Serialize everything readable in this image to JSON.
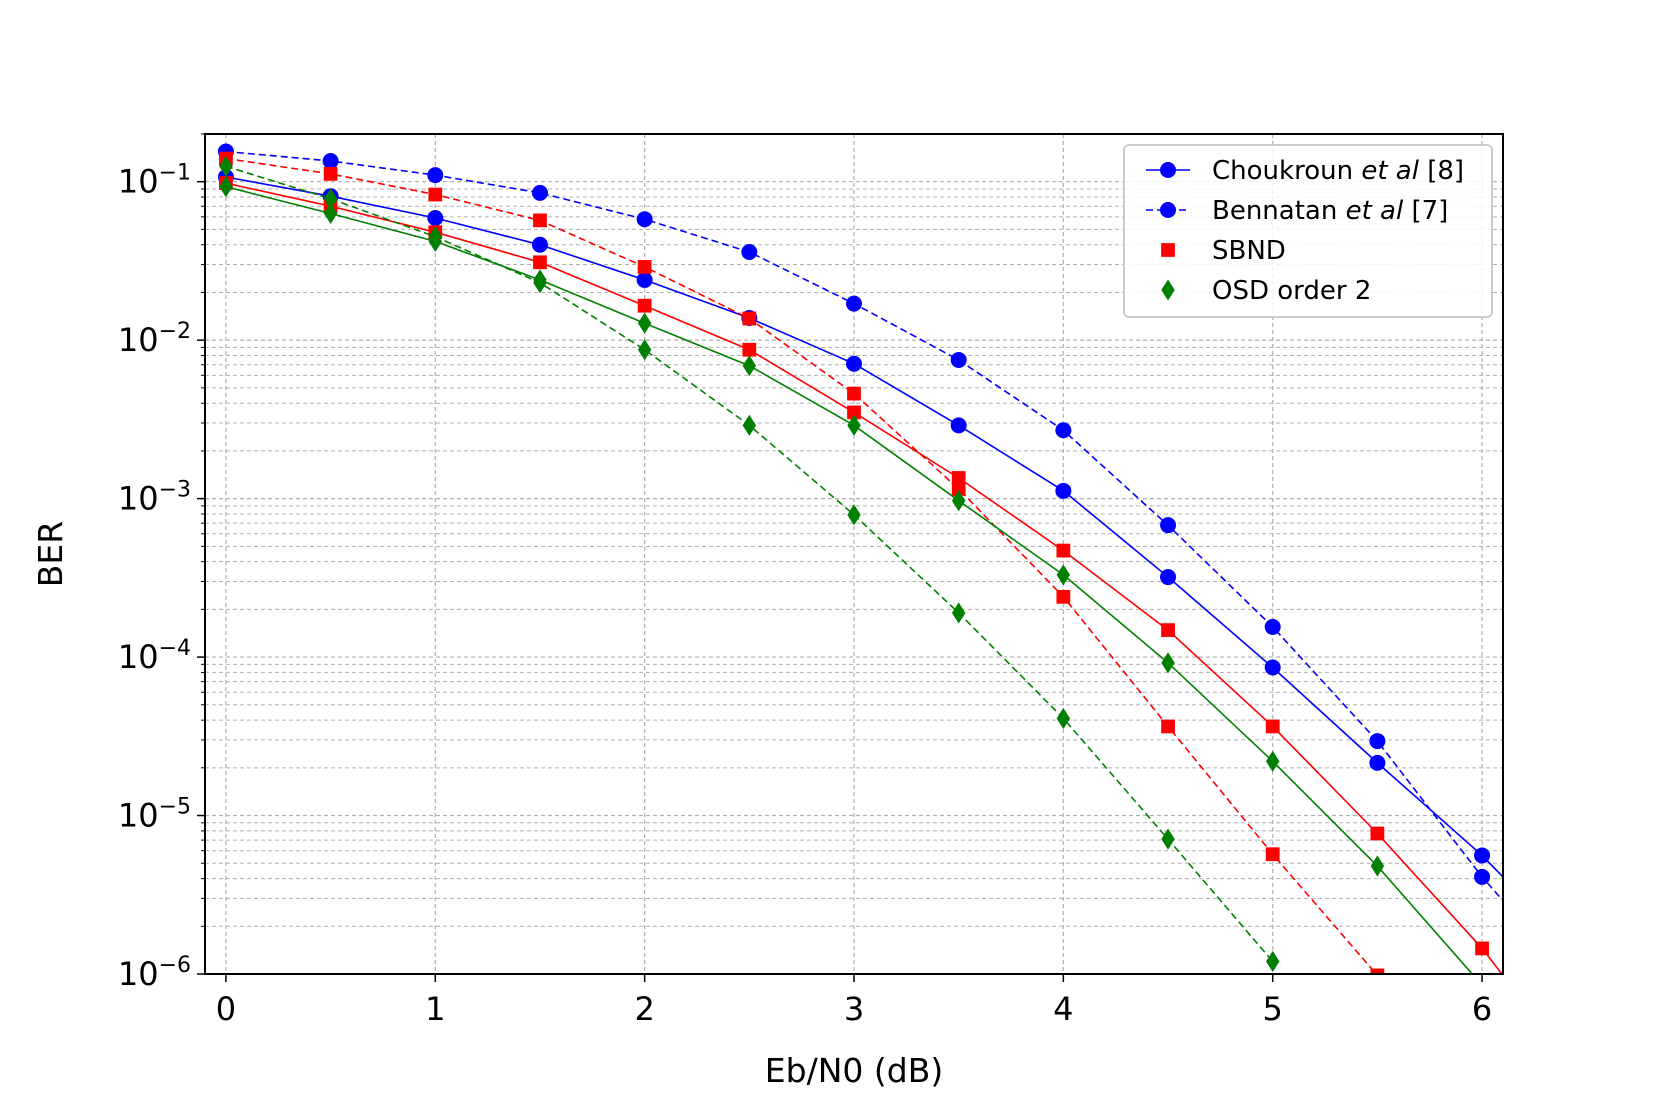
{
  "chart_data": {
    "type": "line",
    "xlabel": "Eb/N0 (dB)",
    "ylabel": "BER",
    "xlim": [
      -0.1,
      6.1
    ],
    "ylim": [
      1e-06,
      0.2
    ],
    "yscale": "log",
    "grid": true,
    "legend_position": "top-right",
    "x_ticks": [
      "0",
      "1",
      "2",
      "3",
      "4",
      "5",
      "6"
    ],
    "y_ticks": [
      {
        "base": "10",
        "exp": "−1"
      },
      {
        "base": "10",
        "exp": "−2"
      },
      {
        "base": "10",
        "exp": "−3"
      },
      {
        "base": "10",
        "exp": "−4"
      },
      {
        "base": "10",
        "exp": "−5"
      },
      {
        "base": "10",
        "exp": "−6"
      }
    ],
    "legend": [
      {
        "pre": "Choukroun ",
        "ital": "et al",
        "post": " [8]"
      },
      {
        "pre": "Bennatan ",
        "ital": "et al",
        "post": " [7]"
      },
      {
        "pre": "SBND",
        "ital": "",
        "post": ""
      },
      {
        "pre": "OSD order 2",
        "ital": "",
        "post": ""
      }
    ],
    "series": [
      {
        "group": "Choukroun et al [8]",
        "color": "#0000ff",
        "marker": "circle",
        "dashed": false,
        "x": [
          0,
          0.5,
          1,
          1.5,
          2,
          2.5,
          3,
          3.5,
          4,
          4.5,
          5,
          5.5,
          6,
          6.1
        ],
        "y": [
          0.107,
          0.081,
          0.059,
          0.04,
          0.024,
          0.0138,
          0.0071,
          0.0029,
          0.00112,
          0.00032,
          8.6e-05,
          2.15e-05,
          5.6e-06,
          4.1e-06
        ]
      },
      {
        "group": "Bennatan et al [7]",
        "color": "#0000ff",
        "marker": "circle",
        "dashed": true,
        "x": [
          0,
          0.5,
          1,
          1.5,
          2,
          2.5,
          3,
          3.5,
          4,
          4.5,
          5,
          5.5,
          6,
          6.1
        ],
        "y": [
          0.155,
          0.135,
          0.11,
          0.085,
          0.058,
          0.036,
          0.017,
          0.0075,
          0.0027,
          0.00068,
          0.000155,
          2.95e-05,
          4.1e-06,
          2.9e-06
        ]
      },
      {
        "group": "SBND",
        "color": "#ff0000",
        "marker": "square",
        "dashed": false,
        "x": [
          0,
          0.5,
          1,
          1.5,
          2,
          2.5,
          3,
          3.5,
          4,
          4.5,
          5,
          5.5,
          6,
          6.1
        ],
        "y": [
          0.098,
          0.07,
          0.048,
          0.031,
          0.0165,
          0.0087,
          0.0035,
          0.00135,
          0.00047,
          0.000148,
          3.65e-05,
          7.7e-06,
          1.45e-06,
          9.8e-07
        ]
      },
      {
        "group": "SBND",
        "color": "#ff0000",
        "marker": "square",
        "dashed": true,
        "x": [
          0,
          0.5,
          1,
          1.5,
          2,
          2.5,
          3,
          3.5,
          4,
          4.5,
          5,
          5.5
        ],
        "y": [
          0.14,
          0.112,
          0.083,
          0.057,
          0.029,
          0.0137,
          0.0046,
          0.00115,
          0.00024,
          3.65e-05,
          5.7e-06,
          9.8e-07
        ]
      },
      {
        "group": "OSD order 2",
        "color": "#008000",
        "marker": "diamond",
        "dashed": false,
        "x": [
          0,
          0.5,
          1,
          1.5,
          2,
          2.5,
          3,
          3.5,
          4,
          4.5,
          5,
          5.5,
          6
        ],
        "y": [
          0.093,
          0.063,
          0.042,
          0.024,
          0.0128,
          0.0069,
          0.0029,
          0.00097,
          0.00033,
          9.2e-05,
          2.2e-05,
          4.8e-06,
          8.5e-07
        ]
      },
      {
        "group": "OSD order 2",
        "color": "#008000",
        "marker": "diamond",
        "dashed": true,
        "x": [
          0,
          0.5,
          1,
          1.5,
          2,
          2.5,
          3,
          3.5,
          4,
          4.5,
          5
        ],
        "y": [
          0.125,
          0.078,
          0.045,
          0.023,
          0.0087,
          0.0029,
          0.00079,
          0.00019,
          4.1e-05,
          7.1e-06,
          1.2e-06
        ]
      }
    ]
  }
}
